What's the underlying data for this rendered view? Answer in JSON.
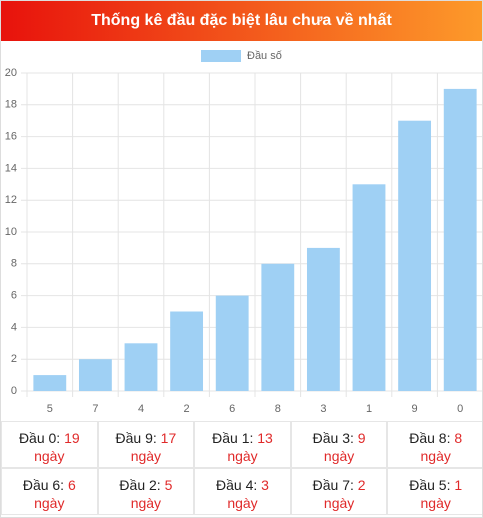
{
  "header": {
    "title": "Thống kê đầu đặc biệt lâu chưa về nhất"
  },
  "chart_data": {
    "type": "bar",
    "categories": [
      "5",
      "7",
      "4",
      "2",
      "6",
      "8",
      "3",
      "1",
      "9",
      "0"
    ],
    "series": [
      {
        "name": "Đầu số",
        "color": "#9fd0f4",
        "values": [
          1,
          2,
          3,
          5,
          6,
          8,
          9,
          13,
          17,
          19
        ]
      }
    ],
    "ylim": [
      0,
      20
    ],
    "yticks": [
      0,
      2,
      4,
      6,
      8,
      10,
      12,
      14,
      16,
      18,
      20
    ],
    "grid": true,
    "legend": "top"
  },
  "table": {
    "cells": [
      {
        "label": "Đầu 0:",
        "value": 19,
        "unit": "ngày"
      },
      {
        "label": "Đầu 9:",
        "value": 17,
        "unit": "ngày"
      },
      {
        "label": "Đầu 1:",
        "value": 13,
        "unit": "ngày"
      },
      {
        "label": "Đầu 3:",
        "value": 9,
        "unit": "ngày"
      },
      {
        "label": "Đầu 8:",
        "value": 8,
        "unit": "ngày"
      },
      {
        "label": "Đầu 6:",
        "value": 6,
        "unit": "ngày"
      },
      {
        "label": "Đầu 2:",
        "value": 5,
        "unit": "ngày"
      },
      {
        "label": "Đầu 4:",
        "value": 3,
        "unit": "ngày"
      },
      {
        "label": "Đầu 7:",
        "value": 2,
        "unit": "ngày"
      },
      {
        "label": "Đầu 5:",
        "value": 1,
        "unit": "ngày"
      }
    ]
  }
}
